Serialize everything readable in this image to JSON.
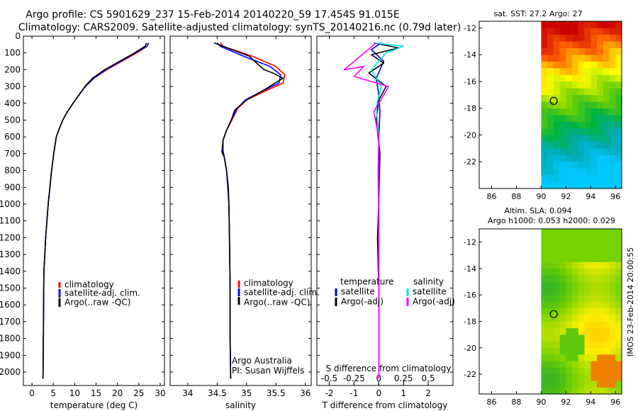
{
  "title_line1": "Argo profile: CS 5901629_237 15-Feb-2014 20140220_59 17.454S 91.015E",
  "title_line2": "Climatology: CARS2009. Satellite-adjusted climatology: synTS_20140216.nc (0.79d later)",
  "colors": {
    "climatology": "#ff0000",
    "satellite_adj": "#0000ff",
    "argo": "#000000",
    "t_satellite": "#0000cc",
    "t_argo": "#000000",
    "s_satellite": "#00e5ee",
    "s_argo": "#ff00ff"
  },
  "legend_profile": [
    "climatology",
    "satellite-adj. clim.",
    "Argo(..raw -QC)"
  ],
  "legend_diff": {
    "temperature_header": "temperature",
    "salinity_header": "salinity",
    "t_items": [
      "satellite",
      "Argo(-adj)"
    ],
    "s_items": [
      "satellite",
      "Argo(-adj)"
    ]
  },
  "credit": {
    "line1": "Argo Australia",
    "line2": "PI: Susan Wijffels"
  },
  "map_sst": {
    "title": "sat. SST: 27.2 Argo: 27"
  },
  "map_sla": {
    "title1": "Altim. SLA: 0.094",
    "title2": "Argo h1000: 0.053 h2000: 0.029"
  },
  "footer": "IMOS 23-Feb-2014 20:00:55",
  "chart_data": [
    {
      "type": "line",
      "xlabel": "temperature (deg C)",
      "ylabel": "",
      "xlim": [
        -2,
        31
      ],
      "ylim": [
        2080,
        0
      ],
      "x_ticks": [
        0,
        5,
        10,
        15,
        20,
        25,
        30
      ],
      "y_ticks": [
        0,
        100,
        200,
        300,
        400,
        500,
        600,
        700,
        800,
        900,
        1000,
        1100,
        1200,
        1300,
        1400,
        1500,
        1600,
        1700,
        1800,
        1900,
        2000
      ],
      "legend_position": "lower-middle",
      "series": [
        {
          "name": "climatology",
          "x": [
            27.2,
            27.0,
            24.5,
            21.0,
            17.5,
            14.5,
            12.5,
            11.0,
            9.6,
            8.3,
            7.2,
            6.4,
            5.7,
            5.1,
            4.6,
            4.2,
            3.8,
            3.5,
            3.2,
            3.0,
            2.8,
            2.6
          ],
          "y": [
            40,
            60,
            100,
            150,
            200,
            250,
            300,
            350,
            400,
            450,
            500,
            550,
            600,
            700,
            800,
            900,
            1000,
            1100,
            1200,
            1300,
            1400,
            2040
          ]
        },
        {
          "name": "satellite-adj. clim.",
          "x": [
            27.3,
            26.9,
            24.2,
            20.8,
            17.3,
            14.5,
            12.5,
            11.0,
            9.6,
            8.3,
            7.2,
            6.4,
            5.7,
            5.1,
            4.6,
            4.2,
            3.8,
            3.5,
            3.2,
            3.0,
            2.8,
            2.6
          ],
          "y": [
            40,
            60,
            100,
            150,
            200,
            250,
            300,
            350,
            400,
            450,
            500,
            550,
            600,
            700,
            800,
            900,
            1000,
            1100,
            1200,
            1300,
            1400,
            2040
          ]
        },
        {
          "name": "Argo(..raw -QC)",
          "x": [
            26.8,
            26.5,
            24.0,
            20.5,
            17.0,
            14.2,
            12.4,
            11.0,
            9.6,
            8.3,
            7.2,
            6.4,
            5.7,
            5.1,
            4.6,
            4.2,
            3.8,
            3.5,
            3.2,
            3.0,
            2.8,
            2.6
          ],
          "y": [
            40,
            60,
            100,
            150,
            200,
            250,
            300,
            350,
            400,
            450,
            500,
            550,
            600,
            700,
            800,
            900,
            1000,
            1100,
            1200,
            1300,
            1400,
            2040
          ]
        }
      ]
    },
    {
      "type": "line",
      "xlabel": "salinity",
      "xlim": [
        33.7,
        36.1
      ],
      "ylim": [
        2080,
        0
      ],
      "x_ticks": [
        34,
        34.5,
        35,
        35.5,
        36
      ],
      "legend_position": "lower-right",
      "series": [
        {
          "name": "climatology",
          "x": [
            34.55,
            34.6,
            35.1,
            35.5,
            35.65,
            35.62,
            35.3,
            35.0,
            34.85,
            34.75,
            34.66,
            34.6,
            34.6,
            34.62,
            34.66,
            34.68,
            34.7,
            34.71,
            34.72,
            34.72,
            34.73
          ],
          "y": [
            40,
            60,
            120,
            180,
            230,
            280,
            330,
            380,
            430,
            500,
            560,
            620,
            680,
            720,
            800,
            900,
            1000,
            1200,
            1500,
            1800,
            2040
          ]
        },
        {
          "name": "satellite-adj. clim.",
          "x": [
            34.5,
            34.55,
            34.95,
            35.4,
            35.58,
            35.55,
            35.25,
            34.98,
            34.84,
            34.74,
            34.66,
            34.6,
            34.6,
            34.62,
            34.66,
            34.68,
            34.7,
            34.71,
            34.72,
            34.72,
            34.73
          ],
          "y": [
            40,
            60,
            120,
            180,
            230,
            280,
            330,
            380,
            430,
            500,
            560,
            620,
            680,
            720,
            800,
            900,
            1000,
            1200,
            1500,
            1800,
            2040
          ]
        },
        {
          "name": "Argo(..raw -QC)",
          "x": [
            34.45,
            34.6,
            35.05,
            35.2,
            35.3,
            35.45,
            35.62,
            35.3,
            35.0,
            34.8,
            34.74,
            34.66,
            34.6,
            34.58,
            34.62,
            34.66,
            34.69,
            34.7,
            34.71,
            34.72,
            34.72,
            34.73
          ],
          "y": [
            40,
            60,
            120,
            170,
            200,
            220,
            250,
            320,
            380,
            440,
            500,
            560,
            620,
            690,
            720,
            800,
            900,
            1000,
            1200,
            1500,
            1800,
            2040
          ]
        }
      ]
    },
    {
      "type": "line",
      "xlabel": "T difference from climatology",
      "xlabel_top": "S difference from climatology",
      "xlim": [
        -2.5,
        3.0
      ],
      "ylim": [
        2080,
        0
      ],
      "x_ticks": [
        -2,
        -1,
        0,
        1,
        2
      ],
      "x_ticks_top": [
        "-0.5",
        "-0.25",
        "0",
        "0.25",
        "0.5"
      ],
      "legend_position": "lower-middle",
      "series": [
        {
          "name": "temperature satellite",
          "x": [
            0.1,
            -0.3,
            0.2,
            -0.1,
            0.0,
            0.05,
            0.0,
            -0.02,
            0.0,
            0.0,
            0.0
          ],
          "y": [
            40,
            80,
            150,
            250,
            350,
            450,
            600,
            800,
            1100,
            1500,
            2040
          ]
        },
        {
          "name": "temperature Argo(-adj)",
          "x": [
            -0.2,
            0.8,
            -0.3,
            0.2,
            -0.4,
            0.3,
            0.0,
            -0.1,
            0.05,
            0.0,
            -0.05,
            0.0,
            0.0
          ],
          "y": [
            40,
            70,
            110,
            160,
            220,
            300,
            380,
            500,
            700,
            1000,
            1200,
            1500,
            2040
          ]
        },
        {
          "name": "salinity satellite",
          "x": [
            -0.2,
            1.0,
            0.3,
            -0.3,
            0.1,
            -0.1,
            0.0,
            0.0,
            0.0
          ],
          "y": [
            40,
            60,
            100,
            200,
            300,
            420,
            600,
            1000,
            2040
          ]
        },
        {
          "name": "salinity Argo(-adj)",
          "x": [
            -0.1,
            -1.4,
            -0.6,
            -1.0,
            0.4,
            -0.2,
            0.0,
            0.0,
            0.0
          ],
          "y": [
            40,
            200,
            180,
            240,
            300,
            450,
            600,
            1000,
            2040
          ]
        }
      ]
    },
    {
      "type": "heatmap",
      "title": "sat. SST: 27.2 Argo: 27",
      "xlim": [
        85,
        96.5
      ],
      "ylim": [
        -24,
        -11.5
      ],
      "x_ticks": [
        86,
        88,
        90,
        92,
        94,
        96
      ],
      "y_ticks": [
        -12,
        -14,
        -16,
        -18,
        -20,
        -22
      ],
      "data_lon_min": 90,
      "marker": {
        "lon": 91.015,
        "lat": -17.454
      }
    },
    {
      "type": "heatmap",
      "title": "Altim. SLA: 0.094 | Argo h1000: 0.053 h2000: 0.029",
      "xlim": [
        85,
        96.5
      ],
      "ylim": [
        -23.5,
        -11
      ],
      "x_ticks": [
        86,
        88,
        90,
        92,
        94,
        96
      ],
      "y_ticks": [
        -12,
        -14,
        -16,
        -18,
        -20,
        -22
      ],
      "data_lon_min": 90,
      "marker": {
        "lon": 91.015,
        "lat": -17.454
      }
    }
  ]
}
